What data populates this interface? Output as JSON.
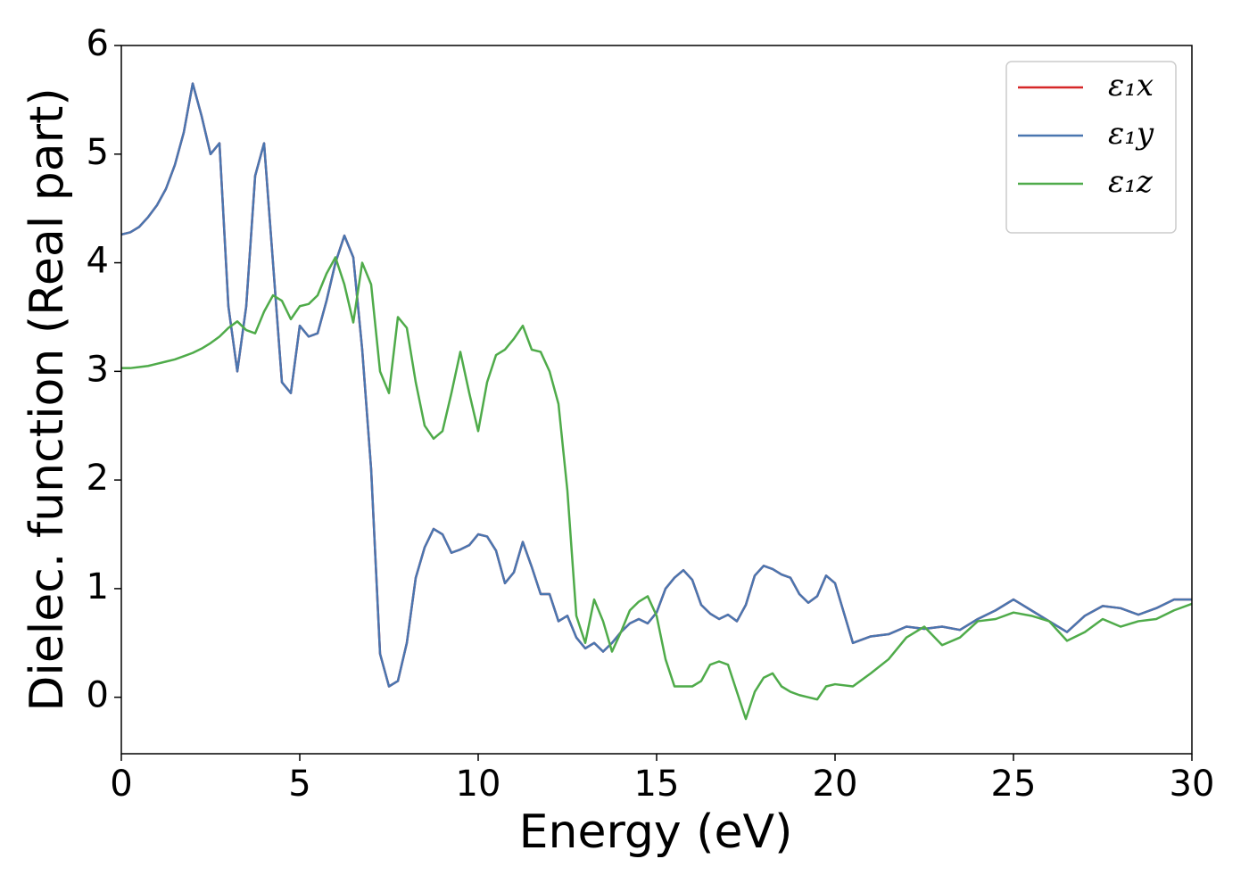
{
  "chart_data": {
    "type": "line",
    "xlabel": "Energy (eV)",
    "ylabel": "Dielec. function (Real part)",
    "xlim": [
      0,
      30
    ],
    "ylim": [
      -0.52,
      6
    ],
    "xticks": [
      0,
      5,
      10,
      15,
      20,
      25,
      30
    ],
    "yticks": [
      0,
      1,
      2,
      3,
      4,
      5,
      6
    ],
    "legend": "upper right",
    "x": [
      0,
      0.25,
      0.5,
      0.75,
      1,
      1.25,
      1.5,
      1.75,
      2,
      2.25,
      2.5,
      2.75,
      3,
      3.25,
      3.5,
      3.75,
      4,
      4.25,
      4.5,
      4.75,
      5,
      5.25,
      5.5,
      5.75,
      6,
      6.25,
      6.5,
      6.75,
      7,
      7.25,
      7.5,
      7.75,
      8,
      8.25,
      8.5,
      8.75,
      9,
      9.25,
      9.5,
      9.75,
      10,
      10.25,
      10.5,
      10.75,
      11,
      11.25,
      11.5,
      11.75,
      12,
      12.25,
      12.5,
      12.75,
      13,
      13.25,
      13.5,
      13.75,
      14,
      14.25,
      14.5,
      14.75,
      15,
      15.25,
      15.5,
      15.75,
      16,
      16.25,
      16.5,
      16.75,
      17,
      17.25,
      17.5,
      17.75,
      18,
      18.25,
      18.5,
      18.75,
      19,
      19.25,
      19.5,
      19.75,
      20,
      20.5,
      21,
      21.5,
      22,
      22.5,
      23,
      23.5,
      24,
      24.5,
      25,
      25.5,
      26,
      26.5,
      27,
      27.5,
      28,
      28.5,
      29,
      29.5,
      30
    ],
    "series": [
      {
        "name": "ε₁x",
        "color": "#d62728",
        "values": [
          4.26,
          4.28,
          4.33,
          4.42,
          4.53,
          4.68,
          4.9,
          5.2,
          5.65,
          5.35,
          5.0,
          5.1,
          3.6,
          3.0,
          3.6,
          4.8,
          5.1,
          4.0,
          2.9,
          2.8,
          3.42,
          3.32,
          3.35,
          3.65,
          4.0,
          4.25,
          4.05,
          3.2,
          2.1,
          0.4,
          0.1,
          0.15,
          0.5,
          1.1,
          1.38,
          1.55,
          1.5,
          1.33,
          1.36,
          1.4,
          1.5,
          1.48,
          1.35,
          1.05,
          1.15,
          1.43,
          1.2,
          0.95,
          0.95,
          0.7,
          0.75,
          0.55,
          0.45,
          0.5,
          0.42,
          0.5,
          0.6,
          0.68,
          0.72,
          0.68,
          0.78,
          1.0,
          1.1,
          1.17,
          1.08,
          0.85,
          0.77,
          0.72,
          0.76,
          0.7,
          0.85,
          1.12,
          1.21,
          1.18,
          1.13,
          1.1,
          0.95,
          0.87,
          0.93,
          1.12,
          1.05,
          0.5,
          0.56,
          0.58,
          0.65,
          0.63,
          0.65,
          0.62,
          0.72,
          0.8,
          0.9,
          0.8,
          0.7,
          0.6,
          0.75,
          0.84,
          0.82,
          0.76,
          0.82,
          0.9,
          0.9
        ]
      },
      {
        "name": "ε₁y",
        "color": "#4a76b0",
        "values": [
          4.26,
          4.28,
          4.33,
          4.42,
          4.53,
          4.68,
          4.9,
          5.2,
          5.65,
          5.35,
          5.0,
          5.1,
          3.6,
          3.0,
          3.6,
          4.8,
          5.1,
          4.0,
          2.9,
          2.8,
          3.42,
          3.32,
          3.35,
          3.65,
          4.0,
          4.25,
          4.05,
          3.2,
          2.1,
          0.4,
          0.1,
          0.15,
          0.5,
          1.1,
          1.38,
          1.55,
          1.5,
          1.33,
          1.36,
          1.4,
          1.5,
          1.48,
          1.35,
          1.05,
          1.15,
          1.43,
          1.2,
          0.95,
          0.95,
          0.7,
          0.75,
          0.55,
          0.45,
          0.5,
          0.42,
          0.5,
          0.6,
          0.68,
          0.72,
          0.68,
          0.78,
          1.0,
          1.1,
          1.17,
          1.08,
          0.85,
          0.77,
          0.72,
          0.76,
          0.7,
          0.85,
          1.12,
          1.21,
          1.18,
          1.13,
          1.1,
          0.95,
          0.87,
          0.93,
          1.12,
          1.05,
          0.5,
          0.56,
          0.58,
          0.65,
          0.63,
          0.65,
          0.62,
          0.72,
          0.8,
          0.9,
          0.8,
          0.7,
          0.6,
          0.75,
          0.84,
          0.82,
          0.76,
          0.82,
          0.9,
          0.9
        ]
      },
      {
        "name": "ε₁z",
        "color": "#4fab4a",
        "values": [
          3.03,
          3.03,
          3.04,
          3.05,
          3.07,
          3.09,
          3.11,
          3.14,
          3.17,
          3.21,
          3.26,
          3.32,
          3.4,
          3.46,
          3.38,
          3.35,
          3.55,
          3.7,
          3.65,
          3.48,
          3.6,
          3.62,
          3.7,
          3.9,
          4.05,
          3.8,
          3.45,
          4.0,
          3.8,
          3.0,
          2.8,
          3.5,
          3.4,
          2.9,
          2.5,
          2.38,
          2.45,
          2.8,
          3.18,
          2.8,
          2.45,
          2.9,
          3.15,
          3.2,
          3.3,
          3.42,
          3.2,
          3.18,
          3.0,
          2.7,
          1.9,
          0.75,
          0.5,
          0.9,
          0.7,
          0.42,
          0.6,
          0.8,
          0.88,
          0.93,
          0.75,
          0.35,
          0.1,
          0.1,
          0.1,
          0.15,
          0.3,
          0.33,
          0.3,
          0.05,
          -0.2,
          0.05,
          0.18,
          0.22,
          0.1,
          0.05,
          0.02,
          0.0,
          -0.02,
          0.1,
          0.12,
          0.1,
          0.22,
          0.35,
          0.55,
          0.65,
          0.48,
          0.55,
          0.7,
          0.72,
          0.78,
          0.75,
          0.7,
          0.52,
          0.6,
          0.72,
          0.65,
          0.7,
          0.72,
          0.8,
          0.86
        ]
      }
    ]
  }
}
